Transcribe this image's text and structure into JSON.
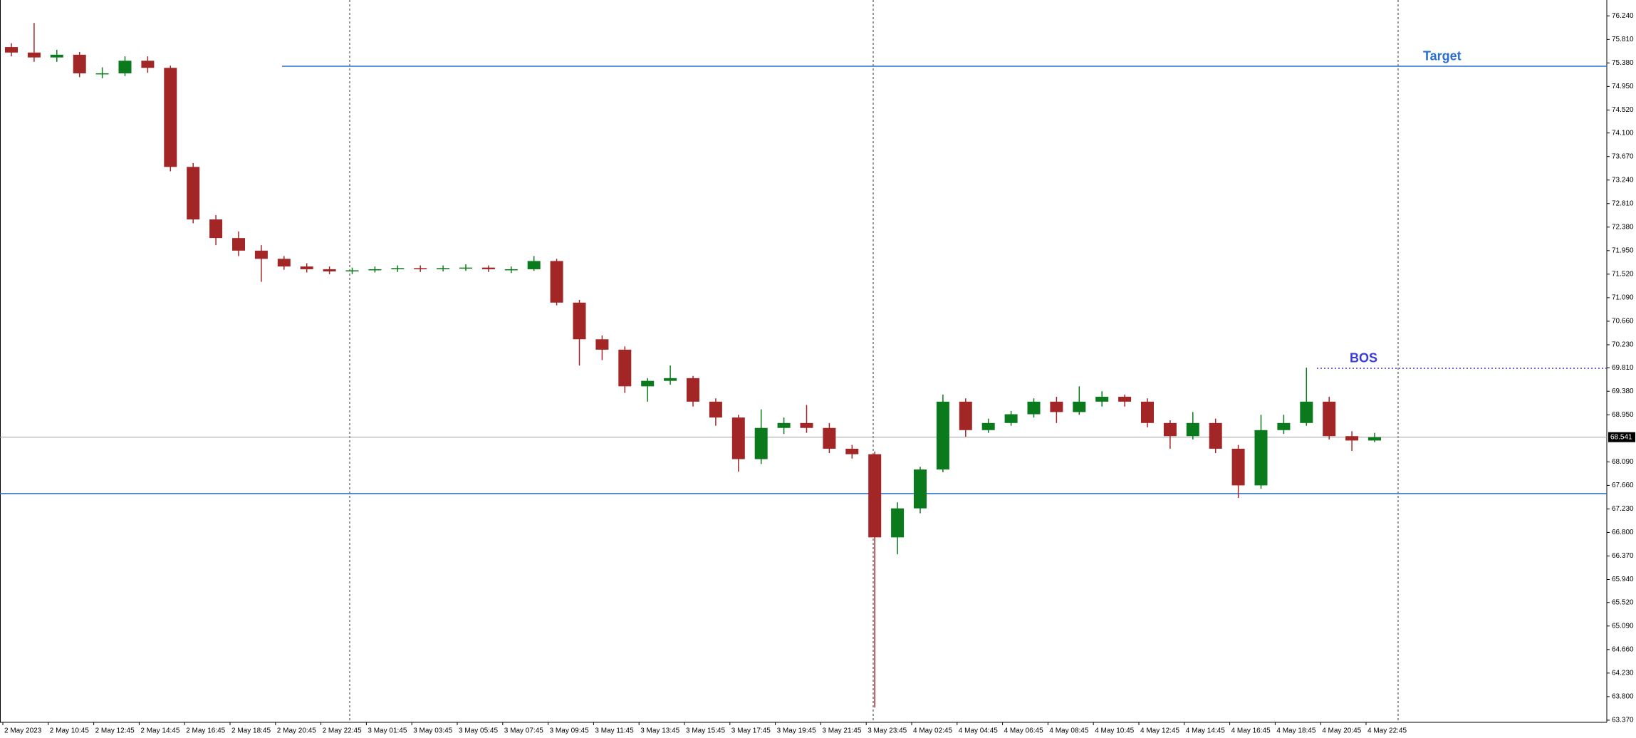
{
  "chart_data": {
    "type": "candlestick",
    "categories": [
      "2 May 2023",
      null,
      "2 May 10:45",
      null,
      "2 May 12:45",
      null,
      "2 May 14:45",
      null,
      "2 May 16:45",
      null,
      "2 May 18:45",
      null,
      "2 May 20:45",
      null,
      "2 May 22:45",
      null,
      "3 May 01:45",
      null,
      "3 May 03:45",
      null,
      "3 May 05:45",
      null,
      "3 May 07:45",
      null,
      "3 May 09:45",
      null,
      "3 May 11:45",
      null,
      "3 May 13:45",
      null,
      "3 May 15:45",
      null,
      "3 May 17:45",
      null,
      "3 May 19:45",
      null,
      "3 May 21:45",
      null,
      "3 May 23:45",
      null,
      "4 May 02:45",
      null,
      "4 May 04:45",
      null,
      "4 May 06:45",
      null,
      "4 May 08:45",
      null,
      "4 May 10:45",
      null,
      "4 May 12:45",
      null,
      "4 May 14:45",
      null,
      "4 May 16:45",
      null,
      "4 May 18:45",
      null,
      "4 May 20:45",
      null,
      "4 May 22:45"
    ],
    "open": [
      75.67,
      75.57,
      75.48,
      75.53,
      75.19,
      75.19,
      75.42,
      75.29,
      73.48,
      72.52,
      72.18,
      71.95,
      71.8,
      71.66,
      71.61,
      71.57,
      71.59,
      71.61,
      71.63,
      71.61,
      71.63,
      71.64,
      71.61,
      71.61,
      71.76,
      71.0,
      70.33,
      70.14,
      69.47,
      69.57,
      69.62,
      69.19,
      68.9,
      68.14,
      68.71,
      68.8,
      68.71,
      68.33,
      68.23,
      66.71,
      67.24,
      67.95,
      69.19,
      68.67,
      68.8,
      68.96,
      69.19,
      69.0,
      69.19,
      69.28,
      69.19,
      68.8,
      68.56,
      68.8,
      68.33,
      67.66,
      68.67,
      68.8,
      69.19,
      68.56,
      68.48
    ],
    "high": [
      75.74,
      76.11,
      75.62,
      75.58,
      75.3,
      75.5,
      75.5,
      75.33,
      73.55,
      72.6,
      72.3,
      72.05,
      71.85,
      71.72,
      71.66,
      71.64,
      71.66,
      71.68,
      71.68,
      71.68,
      71.7,
      71.68,
      71.66,
      71.85,
      71.8,
      71.05,
      70.4,
      70.2,
      69.62,
      69.85,
      69.66,
      69.25,
      68.95,
      69.05,
      68.9,
      69.13,
      68.8,
      68.4,
      68.28,
      67.35,
      68.0,
      69.32,
      69.25,
      68.88,
      69.02,
      69.25,
      69.28,
      69.47,
      69.38,
      69.32,
      69.25,
      68.85,
      69.0,
      68.88,
      68.4,
      68.95,
      68.95,
      69.81,
      69.28,
      68.65,
      68.62
    ],
    "low": [
      75.5,
      75.4,
      75.4,
      75.12,
      75.1,
      75.14,
      75.2,
      73.4,
      72.45,
      72.05,
      71.85,
      71.38,
      71.6,
      71.55,
      71.52,
      71.52,
      71.55,
      71.56,
      71.56,
      71.57,
      71.58,
      71.56,
      71.54,
      71.58,
      70.95,
      69.85,
      69.95,
      69.35,
      69.19,
      69.5,
      69.1,
      68.75,
      67.91,
      68.05,
      68.6,
      68.62,
      68.25,
      68.15,
      63.6,
      66.4,
      67.15,
      67.9,
      68.55,
      68.62,
      68.75,
      68.9,
      68.8,
      68.95,
      69.1,
      69.1,
      68.72,
      68.33,
      68.5,
      68.25,
      67.43,
      67.6,
      68.6,
      68.75,
      68.5,
      68.29,
      68.45
    ],
    "close": [
      75.57,
      75.48,
      75.53,
      75.19,
      75.19,
      75.42,
      75.29,
      73.48,
      72.52,
      72.18,
      71.95,
      71.8,
      71.66,
      71.61,
      71.57,
      71.59,
      71.61,
      71.63,
      71.61,
      71.63,
      71.64,
      71.61,
      71.61,
      71.76,
      71.0,
      70.33,
      70.14,
      69.47,
      69.57,
      69.62,
      69.19,
      68.9,
      68.14,
      68.71,
      68.8,
      68.71,
      68.33,
      68.23,
      66.71,
      67.24,
      67.95,
      69.19,
      68.67,
      68.8,
      68.96,
      69.19,
      69.0,
      69.19,
      69.28,
      69.19,
      68.8,
      68.56,
      68.8,
      68.33,
      67.66,
      68.67,
      68.8,
      69.19,
      68.56,
      68.48,
      68.54
    ],
    "up_color": "#0b7a1c",
    "down_color": "#a32626",
    "ylim": [
      63.33,
      76.53
    ],
    "yticks": [
      {
        "value": 76.24,
        "label": "76.240"
      },
      {
        "value": 75.81,
        "label": "75.810"
      },
      {
        "value": 75.38,
        "label": "75.380"
      },
      {
        "value": 74.95,
        "label": "74.950"
      },
      {
        "value": 74.52,
        "label": "74.520"
      },
      {
        "value": 74.1,
        "label": "74.100"
      },
      {
        "value": 73.67,
        "label": "73.670"
      },
      {
        "value": 73.24,
        "label": "73.240"
      },
      {
        "value": 72.81,
        "label": "72.810"
      },
      {
        "value": 72.38,
        "label": "72.380"
      },
      {
        "value": 71.95,
        "label": "71.950"
      },
      {
        "value": 71.52,
        "label": "71.520"
      },
      {
        "value": 71.09,
        "label": "71.090"
      },
      {
        "value": 70.66,
        "label": "70.660"
      },
      {
        "value": 70.23,
        "label": "70.230"
      },
      {
        "value": 69.81,
        "label": "69.810"
      },
      {
        "value": 69.38,
        "label": "69.380"
      },
      {
        "value": 68.95,
        "label": "68.950"
      },
      {
        "value": 68.09,
        "label": "68.090"
      },
      {
        "value": 67.66,
        "label": "67.660"
      },
      {
        "value": 67.23,
        "label": "67.230"
      },
      {
        "value": 66.8,
        "label": "66.800"
      },
      {
        "value": 66.37,
        "label": "66.370"
      },
      {
        "value": 65.94,
        "label": "65.940"
      },
      {
        "value": 65.52,
        "label": "65.520"
      },
      {
        "value": 65.09,
        "label": "65.090"
      },
      {
        "value": 64.66,
        "label": "64.660"
      },
      {
        "value": 64.23,
        "label": "64.230"
      },
      {
        "value": 63.8,
        "label": "63.800"
      },
      {
        "value": 63.37,
        "label": "63.370"
      }
    ],
    "current_price": 68.541,
    "levels": [
      {
        "label": "Target",
        "value": 75.32,
        "color": "#2a6fd0",
        "style": "solid"
      },
      {
        "value": 67.51,
        "color": "#2a6fd0",
        "style": "solid"
      },
      {
        "label": "BOS",
        "value": 69.8,
        "color": "#3a3ae0",
        "style": "dotted"
      }
    ]
  }
}
